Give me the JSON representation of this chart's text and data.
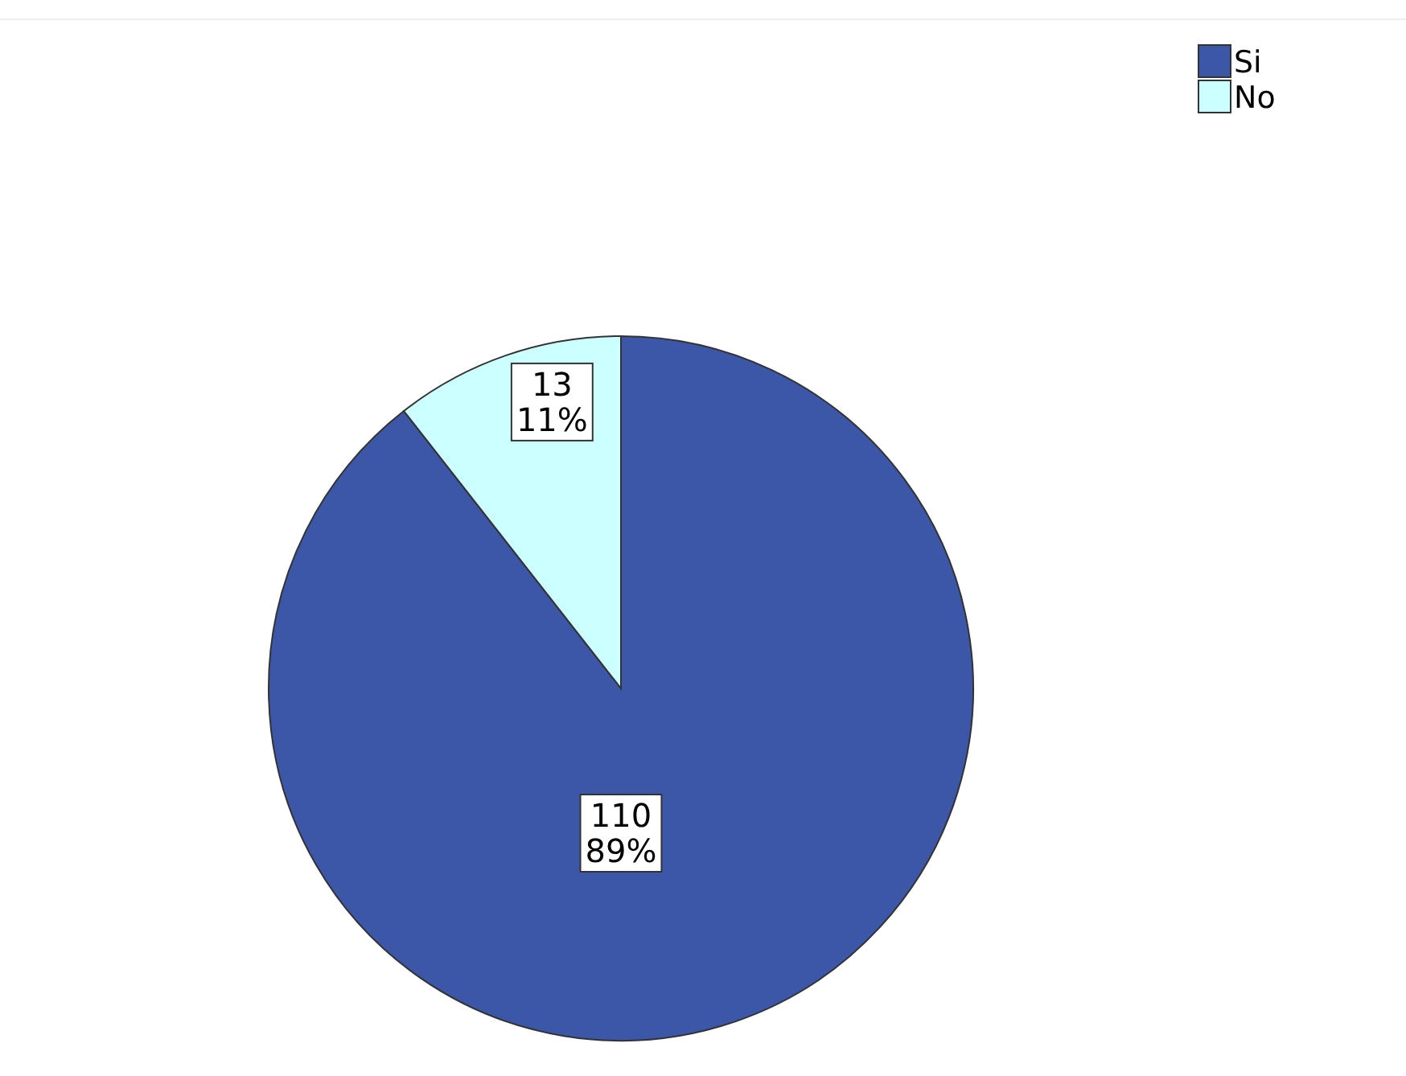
{
  "chart_data": {
    "type": "pie",
    "categories": [
      "Si",
      "No"
    ],
    "values": [
      110,
      13
    ],
    "colors": [
      "#3c56a8",
      "#ccffff"
    ],
    "value_labels": [
      "110\n89%",
      "13\n11%"
    ],
    "legend": "top right"
  }
}
